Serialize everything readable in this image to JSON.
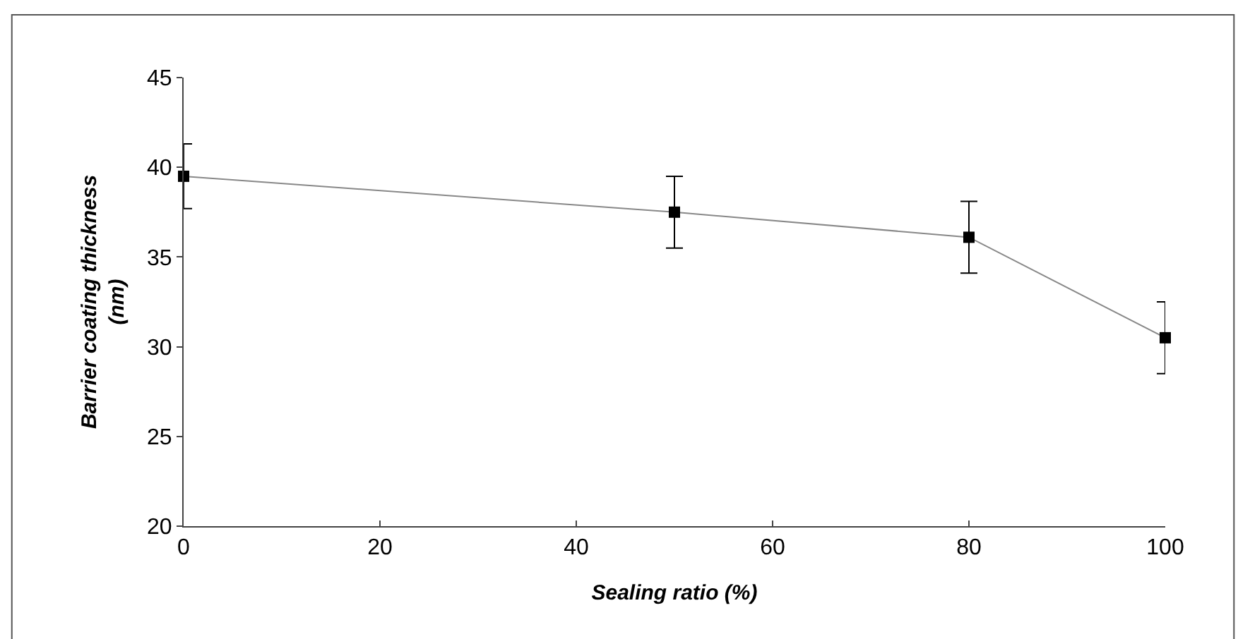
{
  "chart_data": {
    "type": "line",
    "xlabel": "Sealing ratio (%)",
    "ylabel": "Barrier coating thickness (nm)",
    "x": [
      0,
      50,
      80,
      100
    ],
    "series": [
      {
        "color": "#000000",
        "values": [
          39.5,
          37.5,
          36.1,
          30.5
        ],
        "errors": [
          1.8,
          2,
          2,
          2
        ]
      }
    ],
    "xlim": [
      0,
      100
    ],
    "xticks": [
      0,
      20,
      40,
      60,
      80,
      100
    ],
    "ylim": [
      20,
      45
    ],
    "yticks": [
      20,
      25,
      30,
      35,
      40,
      45
    ],
    "legend": false,
    "marker": "square",
    "line_style": "solid"
  }
}
